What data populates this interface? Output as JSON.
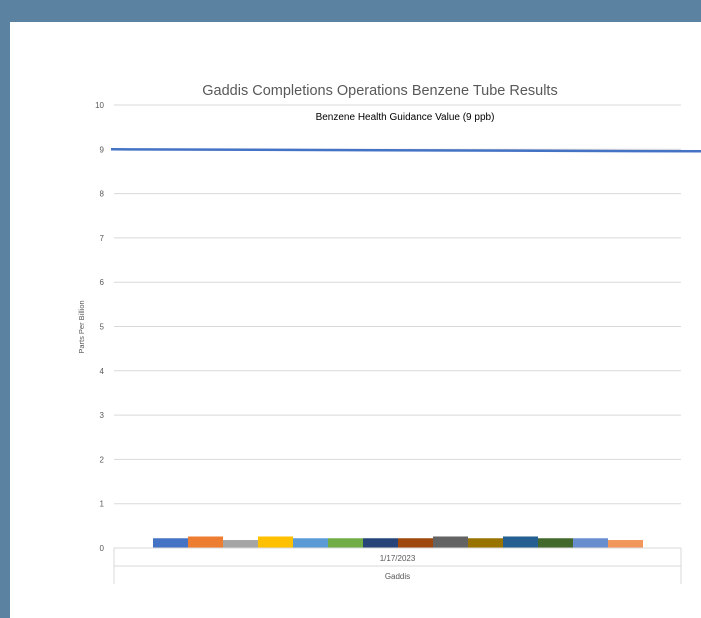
{
  "chart_data": {
    "type": "bar",
    "title": "Gaddis Completions Operations Benzene Tube Results",
    "ylabel": "Parts Per Billion",
    "xlabel": "",
    "ylim": [
      0,
      10
    ],
    "yticks": [
      "0",
      "1",
      "2",
      "3",
      "4",
      "5",
      "6",
      "7",
      "8",
      "9",
      "10"
    ],
    "grid": true,
    "categories": [
      "1/17/2023"
    ],
    "group_label": "Gaddis",
    "reference_line": {
      "label": "Benzene Health Guidance Value (9 ppb)",
      "value": 9,
      "color": "#4472c4"
    },
    "series": [
      {
        "values": [
          0.22
        ],
        "color": "#4472c4"
      },
      {
        "values": [
          0.26
        ],
        "color": "#ed7d31"
      },
      {
        "values": [
          0.18
        ],
        "color": "#a5a5a5"
      },
      {
        "values": [
          0.26
        ],
        "color": "#ffc000"
      },
      {
        "values": [
          0.22
        ],
        "color": "#5b9bd5"
      },
      {
        "values": [
          0.22
        ],
        "color": "#70ad47"
      },
      {
        "values": [
          0.22
        ],
        "color": "#264478"
      },
      {
        "values": [
          0.22
        ],
        "color": "#9e480e"
      },
      {
        "values": [
          0.26
        ],
        "color": "#636363"
      },
      {
        "values": [
          0.22
        ],
        "color": "#997300"
      },
      {
        "values": [
          0.26
        ],
        "color": "#255e91"
      },
      {
        "values": [
          0.22
        ],
        "color": "#43682b"
      },
      {
        "values": [
          0.22
        ],
        "color": "#698ed0"
      },
      {
        "values": [
          0.18
        ],
        "color": "#f1975a"
      }
    ]
  }
}
